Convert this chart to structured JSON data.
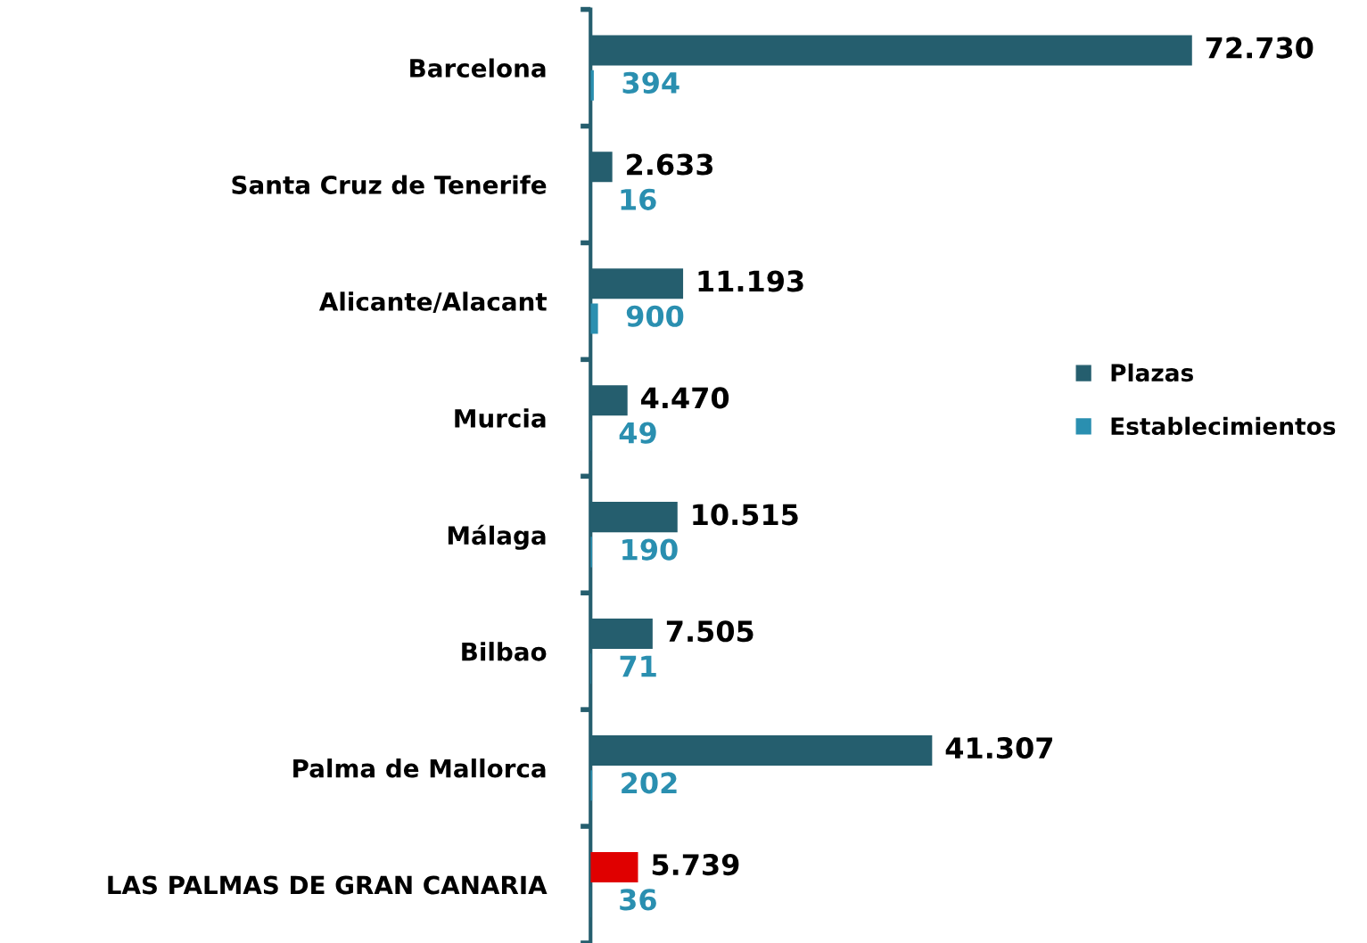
{
  "chart_data": {
    "type": "bar",
    "orientation": "horizontal",
    "categories": [
      "Barcelona",
      "Santa Cruz de Tenerife",
      "Alicante/Alacant",
      "Murcia",
      "Málaga",
      "Bilbao",
      "Palma de Mallorca",
      "LAS PALMAS DE GRAN CANARIA"
    ],
    "series": [
      {
        "name": "Plazas",
        "color": "#255e6e",
        "colors": [
          "#255e6e",
          "#255e6e",
          "#255e6e",
          "#255e6e",
          "#255e6e",
          "#255e6e",
          "#255e6e",
          "#e00000"
        ],
        "values": [
          72730,
          2633,
          11193,
          4470,
          10515,
          7505,
          41307,
          5739
        ],
        "value_labels": [
          "72.730",
          "2.633",
          "11.193",
          "4.470",
          "10.515",
          "7.505",
          "41.307",
          "5.739"
        ]
      },
      {
        "name": "Establecimientos",
        "color": "#2a8fb0",
        "values": [
          394,
          16,
          900,
          49,
          190,
          71,
          202,
          36
        ],
        "value_labels": [
          "394",
          "16",
          "900",
          "49",
          "190",
          "71",
          "202",
          "36"
        ]
      }
    ],
    "legend": "right",
    "grid": false,
    "tick_labels": "y"
  }
}
